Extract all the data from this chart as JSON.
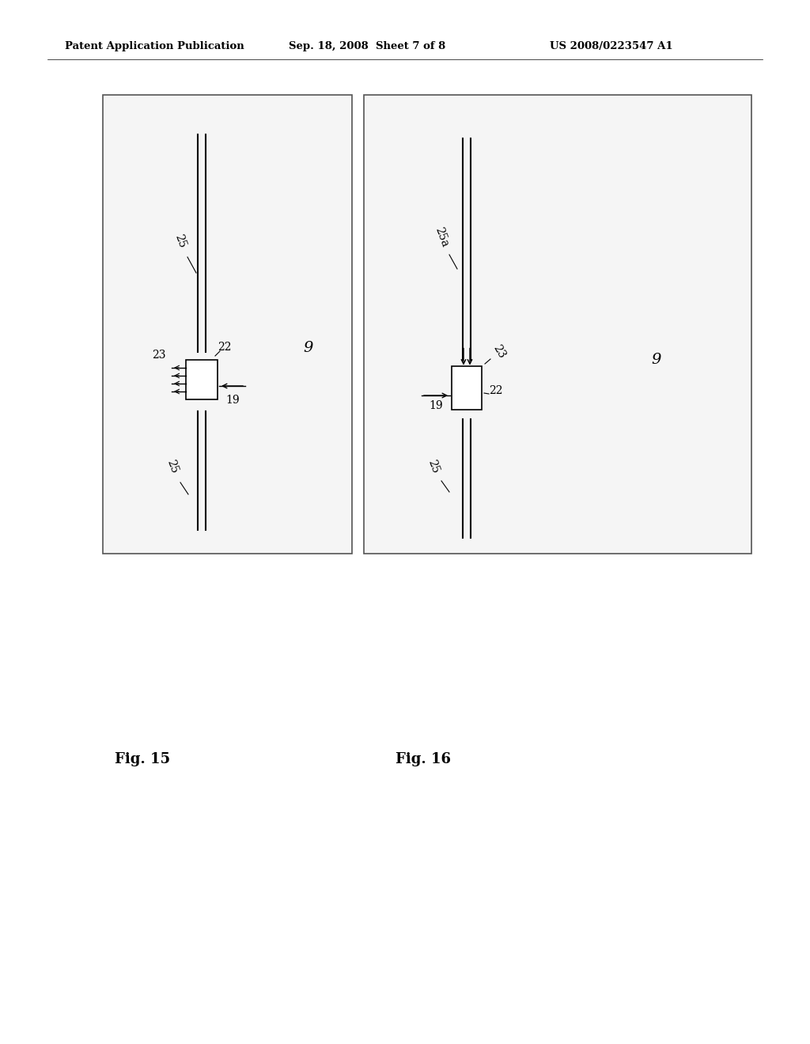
{
  "bg_color": "#ffffff",
  "header_text": "Patent Application Publication",
  "header_date": "Sep. 18, 2008  Sheet 7 of 8",
  "header_patent": "US 2008/0223547 A1",
  "fig15_label": "Fig. 15",
  "fig16_label": "Fig. 16"
}
